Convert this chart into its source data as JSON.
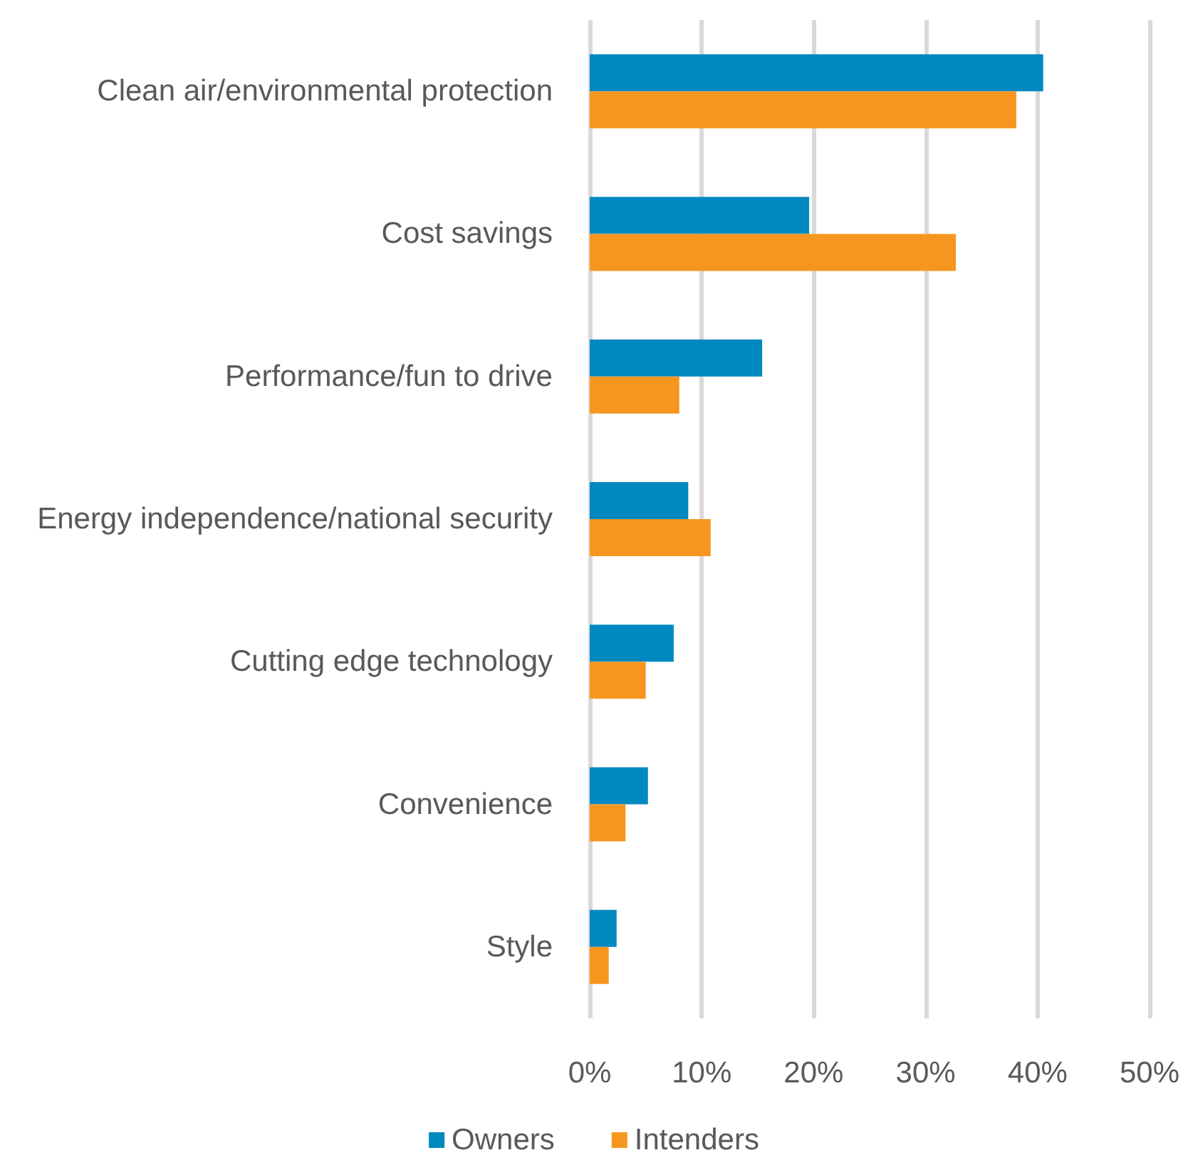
{
  "chart_data": {
    "type": "bar",
    "orientation": "horizontal",
    "categories": [
      "Clean air/environmental protection",
      "Cost savings",
      "Performance/fun to drive",
      "Energy independence/national security",
      "Cutting edge technology",
      "Convenience",
      "Style"
    ],
    "series": [
      {
        "name": "Owners",
        "color": "#0089c0",
        "values": [
          40.5,
          19.6,
          15.4,
          8.8,
          7.5,
          5.2,
          2.4
        ]
      },
      {
        "name": "Intenders",
        "color": "#f7961e",
        "values": [
          38.1,
          32.7,
          8.0,
          10.8,
          5.0,
          3.2,
          1.7
        ]
      }
    ],
    "xlim": [
      0,
      50
    ],
    "xticks": [
      {
        "value": 0,
        "label": "0%"
      },
      {
        "value": 10,
        "label": "10%"
      },
      {
        "value": 20,
        "label": "20%"
      },
      {
        "value": 30,
        "label": "30%"
      },
      {
        "value": 40,
        "label": "40%"
      },
      {
        "value": 50,
        "label": "50%"
      }
    ],
    "grid": "x",
    "legend": "bottom"
  }
}
